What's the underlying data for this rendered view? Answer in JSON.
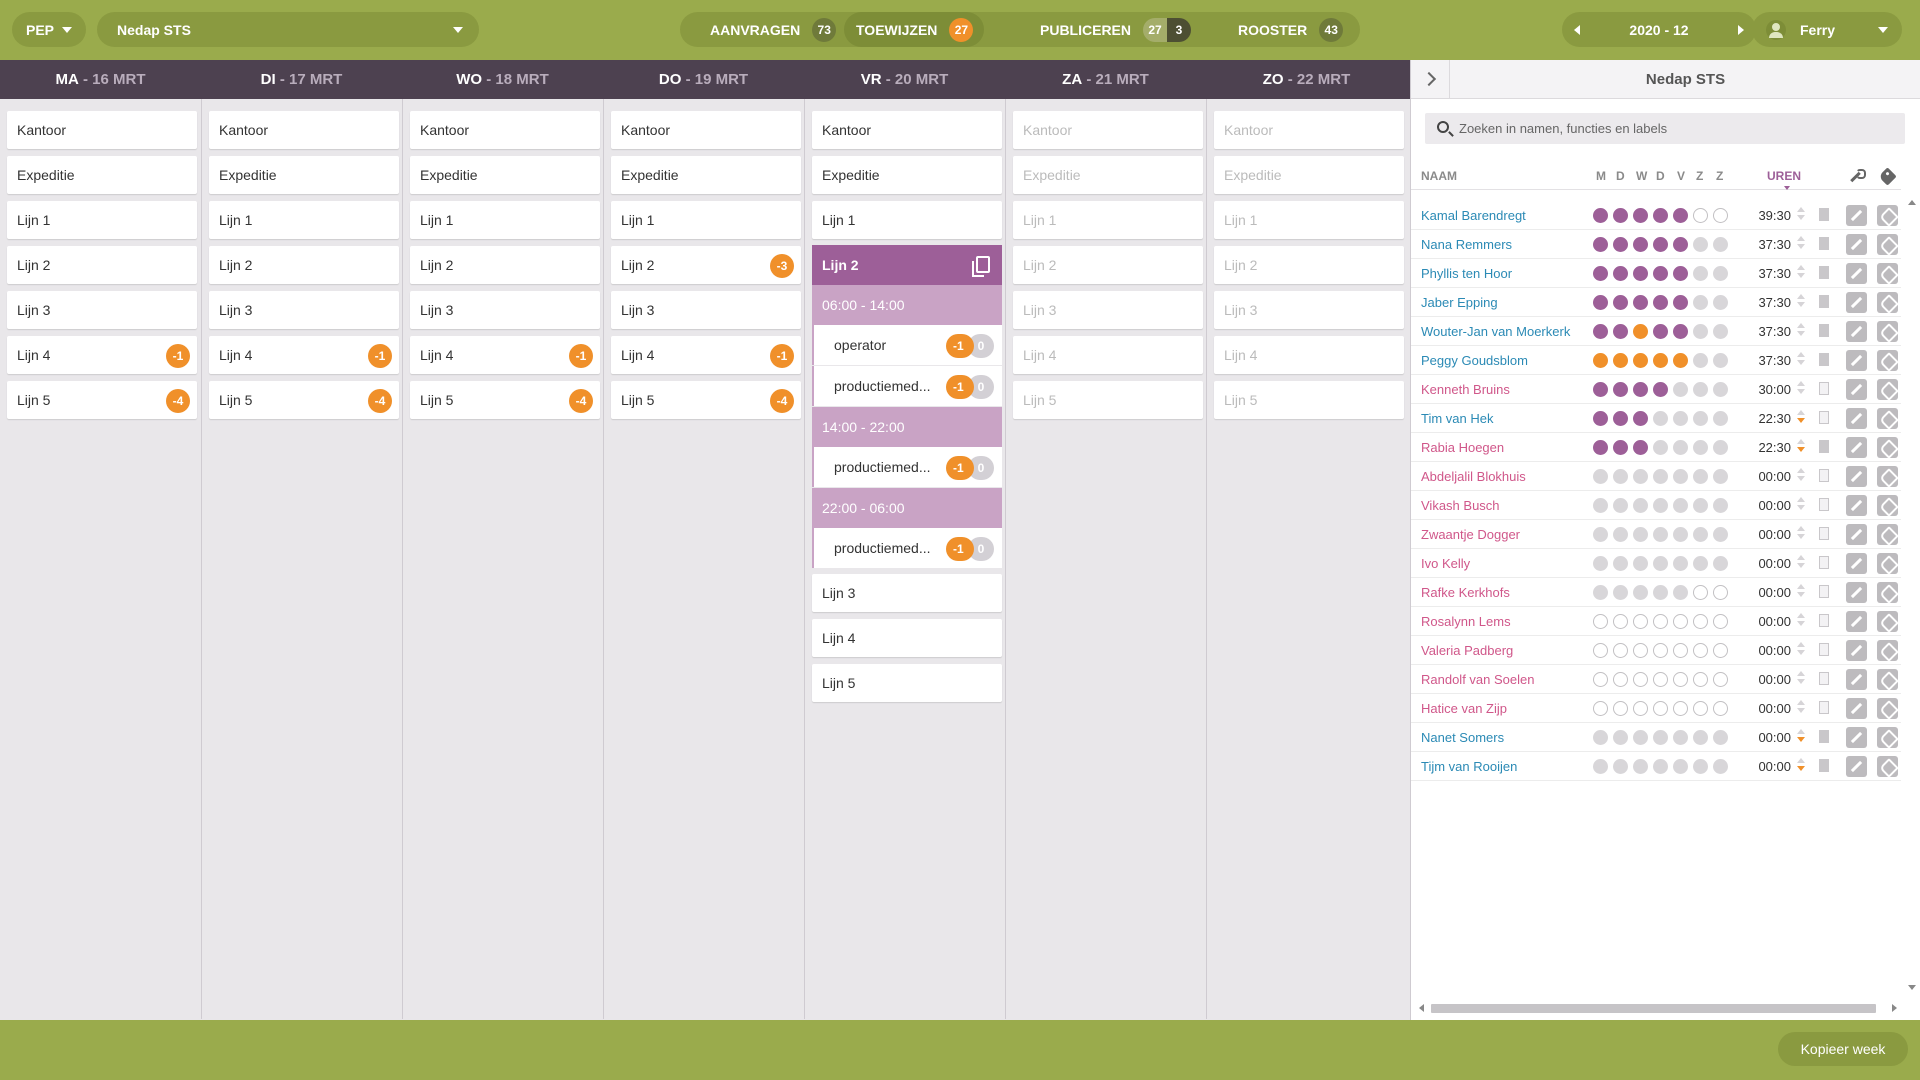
{
  "topbar": {
    "app_label": "PEP",
    "org_label": "Nedap STS",
    "tabs": [
      {
        "label": "AANVRAGEN",
        "counts": [
          "73"
        ]
      },
      {
        "label": "TOEWIJZEN",
        "counts": [
          "27"
        ]
      },
      {
        "label": "PUBLICEREN",
        "counts": [
          "27",
          "3"
        ]
      },
      {
        "label": "ROOSTER",
        "counts": [
          "43"
        ]
      }
    ],
    "period": "2020 - 12",
    "user": "Ferry"
  },
  "days": [
    {
      "name": "MA",
      "date": "- 16 MRT"
    },
    {
      "name": "DI",
      "date": "- 17 MRT"
    },
    {
      "name": "WO",
      "date": "- 18 MRT"
    },
    {
      "name": "DO",
      "date": "- 19 MRT"
    },
    {
      "name": "VR",
      "date": "- 20 MRT"
    },
    {
      "name": "ZA",
      "date": "- 21 MRT"
    },
    {
      "name": "ZO",
      "date": "- 22 MRT"
    }
  ],
  "lines": [
    "Kantoor",
    "Expeditie",
    "Lijn 1",
    "Lijn 2",
    "Lijn 3",
    "Lijn 4",
    "Lijn 5"
  ],
  "badges": {
    "ma": {
      "lijn4": "-1",
      "lijn5": "-4"
    },
    "di": {
      "lijn4": "-1",
      "lijn5": "-4"
    },
    "wo": {
      "lijn4": "-1",
      "lijn5": "-4"
    },
    "do": {
      "lijn2": "-3",
      "lijn4": "-1",
      "lijn5": "-4"
    }
  },
  "friday_expanded": {
    "title": "Lijn 2",
    "shifts": [
      {
        "time": "06:00 - 14:00",
        "roles": [
          {
            "name": "operator",
            "need": "-1",
            "have": "0"
          },
          {
            "name": "productiemed...",
            "need": "-1",
            "have": "0"
          }
        ]
      },
      {
        "time": "14:00 - 22:00",
        "roles": [
          {
            "name": "productiemed...",
            "need": "-1",
            "have": "0"
          }
        ]
      },
      {
        "time": "22:00 - 06:00",
        "roles": [
          {
            "name": "productiemed...",
            "need": "-1",
            "have": "0"
          }
        ]
      }
    ]
  },
  "panel": {
    "title": "Nedap STS",
    "search_placeholder": "Zoeken in namen, functies en labels",
    "headers": {
      "name": "NAAM",
      "days": [
        "M",
        "D",
        "W",
        "D",
        "V",
        "Z",
        "Z"
      ],
      "hours": "UREN"
    },
    "employees": [
      {
        "name": "Kamal Barendregt",
        "dots": "ppppp ee",
        "hours": "39:30",
        "color": "blue",
        "sort": "",
        "doc": "filled"
      },
      {
        "name": "Nana Remmers",
        "dots": "pppppgg",
        "hours": "37:30",
        "color": "blue",
        "sort": "",
        "doc": "filled"
      },
      {
        "name": "Phyllis ten Hoor",
        "dots": "pppppgg",
        "hours": "37:30",
        "color": "blue",
        "sort": "",
        "doc": "filled"
      },
      {
        "name": "Jaber Epping",
        "dots": "pppppgg",
        "hours": "37:30",
        "color": "blue",
        "sort": "",
        "doc": "filled"
      },
      {
        "name": "Wouter-Jan van Moerkerk",
        "dots": "ppoppgg",
        "hours": "37:30",
        "color": "blue",
        "sort": "",
        "doc": "filled"
      },
      {
        "name": "Peggy Goudsblom",
        "dots": "ooooogg",
        "hours": "37:30",
        "color": "blue",
        "sort": "",
        "doc": "filled"
      },
      {
        "name": "Kenneth Bruins",
        "dots": "ppppggg",
        "hours": "30:00",
        "color": "pink",
        "sort": "",
        "doc": ""
      },
      {
        "name": "Tim van Hek",
        "dots": "pppgggg",
        "hours": "22:30",
        "color": "blue",
        "sort": "down",
        "doc": ""
      },
      {
        "name": "Rabia Hoegen",
        "dots": "pppgggg",
        "hours": "22:30",
        "color": "pink",
        "sort": "down",
        "doc": "filled"
      },
      {
        "name": "Abdeljalil Blokhuis",
        "dots": "ggggggg",
        "hours": "00:00",
        "color": "pink",
        "sort": "",
        "doc": ""
      },
      {
        "name": "Vikash Busch",
        "dots": "ggggggg",
        "hours": "00:00",
        "color": "pink",
        "sort": "",
        "doc": ""
      },
      {
        "name": "Zwaantje Dogger",
        "dots": "ggggggg",
        "hours": "00:00",
        "color": "pink",
        "sort": "",
        "doc": ""
      },
      {
        "name": "Ivo Kelly",
        "dots": "ggggggg",
        "hours": "00:00",
        "color": "pink",
        "sort": "",
        "doc": ""
      },
      {
        "name": "Rafke Kerkhofs",
        "dots": "gggggee",
        "hours": "00:00",
        "color": "pink",
        "sort": "",
        "doc": ""
      },
      {
        "name": "Rosalynn Lems",
        "dots": "eeeeeee",
        "hours": "00:00",
        "color": "pink",
        "sort": "",
        "doc": ""
      },
      {
        "name": "Valeria Padberg",
        "dots": "eeeeeee",
        "hours": "00:00",
        "color": "pink",
        "sort": "",
        "doc": ""
      },
      {
        "name": "Randolf van Soelen",
        "dots": "eeeeeee",
        "hours": "00:00",
        "color": "pink",
        "sort": "",
        "doc": ""
      },
      {
        "name": "Hatice van Zijp",
        "dots": "eeeeeee",
        "hours": "00:00",
        "color": "pink",
        "sort": "",
        "doc": ""
      },
      {
        "name": "Nanet Somers",
        "dots": "ggggggg",
        "hours": "00:00",
        "color": "blue",
        "sort": "down",
        "doc": "filled"
      },
      {
        "name": "Tijm van Rooijen",
        "dots": "ggggggg",
        "hours": "00:00",
        "color": "blue",
        "sort": "down",
        "doc": "filled"
      }
    ]
  },
  "footer": {
    "copy_week": "Kopieer week"
  },
  "colors": {
    "topbar": "#9aab4c",
    "purple": "#9d5f98",
    "orange": "#f0902a",
    "link_blue": "#2b8ab5",
    "link_pink": "#d0578a"
  }
}
